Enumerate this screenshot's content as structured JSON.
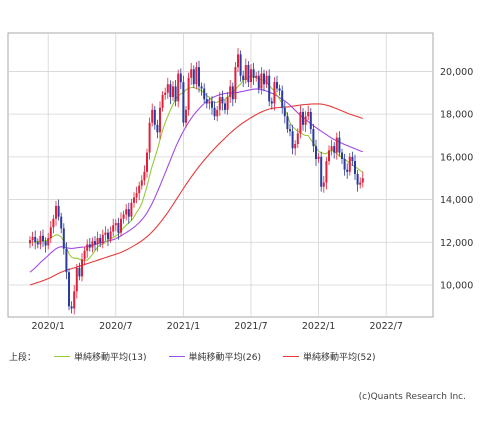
{
  "chart_data": {
    "type": "candlestick",
    "y_axis": {
      "min": 8500,
      "max": 21800,
      "ticks": [
        10000,
        12000,
        14000,
        16000,
        18000,
        20000
      ],
      "tick_labels": [
        "10,000",
        "12,000",
        "14,000",
        "16,000",
        "18,000",
        "20,000"
      ],
      "position": "right"
    },
    "x_axis": {
      "ticks": [
        {
          "label": "2020/1",
          "week": 7
        },
        {
          "label": "2020/7",
          "week": 33
        },
        {
          "label": "2021/1",
          "week": 59
        },
        {
          "label": "2021/7",
          "week": 85
        },
        {
          "label": "2022/1",
          "week": 111
        },
        {
          "label": "2022/7",
          "week": 137
        }
      ]
    },
    "grid": true,
    "colors": {
      "up": "#e0203a",
      "down": "#2a3a9e",
      "ma13": "#99c93a",
      "ma26": "#a24be0",
      "ma52": "#e33c3c"
    },
    "close": [
      12100,
      12250,
      12000,
      11900,
      12300,
      12050,
      11850,
      12200,
      12700,
      13100,
      13700,
      13200,
      12650,
      11700,
      10600,
      9000,
      8900,
      9700,
      10800,
      10400,
      11200,
      11600,
      11900,
      11750,
      12050,
      11900,
      12200,
      11950,
      12350,
      12450,
      12150,
      12500,
      12800,
      12900,
      12450,
      13100,
      13300,
      13550,
      13200,
      13850,
      14100,
      14300,
      14650,
      14900,
      15300,
      16200,
      17600,
      18200,
      17500,
      17150,
      18300,
      18900,
      19000,
      19400,
      18800,
      19300,
      18600,
      19900,
      19500,
      17600,
      18200,
      19700,
      20100,
      19400,
      20200,
      19300,
      19200,
      18700,
      18500,
      18600,
      18300,
      17900,
      18200,
      18800,
      18500,
      18200,
      18800,
      19300,
      18700,
      20200,
      20800,
      19800,
      19600,
      20300,
      19500,
      20100,
      19700,
      19800,
      19200,
      19900,
      19400,
      19800,
      18600,
      18500,
      19500,
      19200,
      19100,
      18300,
      17900,
      17300,
      17200,
      16400,
      16600,
      17100,
      18100,
      17500,
      17900,
      18100,
      17300,
      16500,
      15900,
      16000,
      14600,
      14800,
      15800,
      16300,
      16500,
      16200,
      16900,
      16200,
      15900,
      15400,
      15300,
      16000,
      15800,
      15200,
      14700,
      14800,
      15000
    ],
    "ma13": [
      12000,
      12010,
      12020,
      12030,
      12050,
      12060,
      12070,
      12120,
      12200,
      12280,
      12350,
      12330,
      12250,
      12050,
      11770,
      11450,
      11300,
      11250,
      11260,
      11200,
      11150,
      11150,
      11160,
      11280,
      11420,
      11600,
      11780,
      11870,
      11920,
      11990,
      12100,
      12160,
      12220,
      12300,
      12380,
      12520,
      12680,
      12800,
      12910,
      13020,
      13180,
      13400,
      13580,
      13820,
      14200,
      14630,
      15120,
      15580,
      15950,
      16350,
      16800,
      17250,
      17600,
      17900,
      18200,
      18450,
      18700,
      18850,
      18950,
      19000,
      19150,
      19200,
      19250,
      19250,
      19200,
      19150,
      19100,
      19000,
      18850,
      18800,
      18600,
      18550,
      18550,
      18650,
      18650,
      18700,
      18800,
      18900,
      19050,
      19150,
      19300,
      19400,
      19600,
      19650,
      19700,
      19800,
      19750,
      19700,
      19650,
      19600,
      19600,
      19500,
      19350,
      19200,
      19100,
      18900,
      18700,
      18500,
      18200,
      17950,
      17600,
      17400,
      17300,
      17200,
      17150,
      17050,
      17000,
      17000,
      16800,
      16650,
      16450,
      16250,
      16200,
      16150,
      16150,
      16250,
      16300,
      16250,
      16150,
      16050,
      15950,
      15900,
      15800,
      15700,
      15600,
      15550,
      15450,
      15350,
      15300
    ],
    "ma26": [
      10600,
      10700,
      10800,
      10920,
      11050,
      11160,
      11270,
      11380,
      11500,
      11600,
      11700,
      11760,
      11790,
      11780,
      11750,
      11720,
      11710,
      11720,
      11740,
      11760,
      11770,
      11780,
      11800,
      11830,
      11860,
      11900,
      11940,
      11970,
      12000,
      12030,
      12060,
      12090,
      12120,
      12170,
      12230,
      12300,
      12380,
      12450,
      12530,
      12610,
      12700,
      12810,
      12920,
      13050,
      13200,
      13380,
      13600,
      13820,
      14080,
      14360,
      14650,
      14950,
      15250,
      15550,
      15850,
      16150,
      16450,
      16720,
      16970,
      17200,
      17420,
      17620,
      17800,
      17970,
      18120,
      18250,
      18380,
      18500,
      18600,
      18690,
      18760,
      18820,
      18870,
      18910,
      18940,
      18960,
      18980,
      19000,
      19000,
      19000,
      19020,
      19050,
      19070,
      19100,
      19120,
      19150,
      19170,
      19180,
      19170,
      19150,
      19120,
      19080,
      19030,
      18980,
      18920,
      18850,
      18780,
      18700,
      18620,
      18520,
      18420,
      18300,
      18180,
      18060,
      17950,
      17850,
      17750,
      17650,
      17550,
      17460,
      17370,
      17280,
      17200,
      17120,
      17040,
      16960,
      16880,
      16810,
      16750,
      16690,
      16630,
      16580,
      16530,
      16480,
      16430,
      16380,
      16330,
      16280,
      16240
    ],
    "ma52": [
      10000,
      10040,
      10080,
      10120,
      10160,
      10200,
      10250,
      10300,
      10350,
      10420,
      10480,
      10540,
      10600,
      10650,
      10700,
      10730,
      10760,
      10800,
      10840,
      10880,
      10920,
      10960,
      11000,
      11040,
      11080,
      11120,
      11160,
      11200,
      11240,
      11280,
      11320,
      11360,
      11400,
      11440,
      11480,
      11520,
      11580,
      11640,
      11700,
      11770,
      11840,
      11910,
      11990,
      12070,
      12160,
      12260,
      12370,
      12490,
      12620,
      12760,
      12910,
      13070,
      13230,
      13400,
      13580,
      13760,
      13950,
      14140,
      14330,
      14520,
      14700,
      14880,
      15050,
      15220,
      15390,
      15550,
      15700,
      15850,
      15990,
      16130,
      16260,
      16390,
      16520,
      16640,
      16760,
      16880,
      17000,
      17110,
      17220,
      17320,
      17420,
      17510,
      17600,
      17680,
      17760,
      17840,
      17910,
      17980,
      18040,
      18100,
      18150,
      18200,
      18240,
      18270,
      18290,
      18300,
      18310,
      18320,
      18330,
      18340,
      18350,
      18370,
      18390,
      18410,
      18430,
      18440,
      18450,
      18460,
      18470,
      18480,
      18480,
      18480,
      18470,
      18450,
      18420,
      18390,
      18350,
      18300,
      18250,
      18200,
      18150,
      18100,
      18050,
      18000,
      17960,
      17920,
      17880,
      17840,
      17800
    ]
  },
  "legend": {
    "prefix": "上段：",
    "items": [
      {
        "label": "単純移動平均(13)",
        "color": "#99c93a"
      },
      {
        "label": "単純移動平均(26)",
        "color": "#a24be0"
      },
      {
        "label": "単純移動平均(52)",
        "color": "#e33c3c"
      }
    ]
  },
  "credit": "(c)Quants Research Inc."
}
